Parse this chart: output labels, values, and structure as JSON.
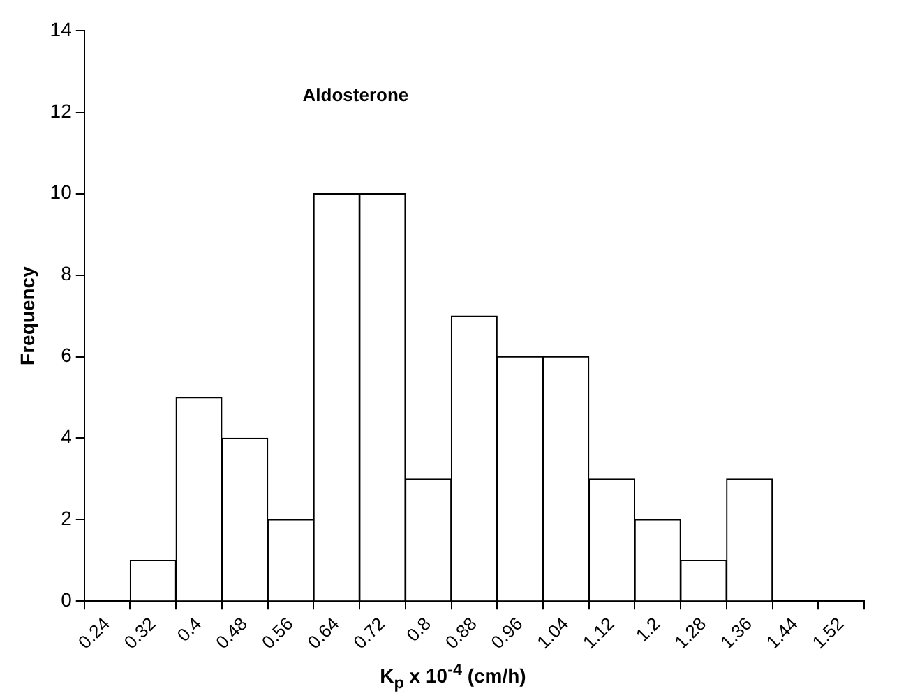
{
  "chart_data": {
    "type": "bar",
    "categories": [
      "0.24",
      "0.32",
      "0.4",
      "0.48",
      "0.56",
      "0.64",
      "0.72",
      "0.8",
      "0.88",
      "0.96",
      "1.04",
      "1.12",
      "1.2",
      "1.28",
      "1.36",
      "1.44",
      "1.52"
    ],
    "values": [
      0,
      1,
      5,
      4,
      2,
      10,
      10,
      3,
      7,
      6,
      6,
      3,
      2,
      1,
      3,
      0,
      0
    ],
    "color": "#ffffff",
    "xlabel": "K$_{p}$ x 10$^{-4}$ (cm/h)",
    "ylabel": "Frequency",
    "annotations": [
      "Aldosterone"
    ],
    "ylim": [
      0,
      14
    ],
    "yticks": [
      0,
      2,
      4,
      6,
      8,
      10,
      12,
      14
    ],
    "grid": false,
    "legend": false
  }
}
